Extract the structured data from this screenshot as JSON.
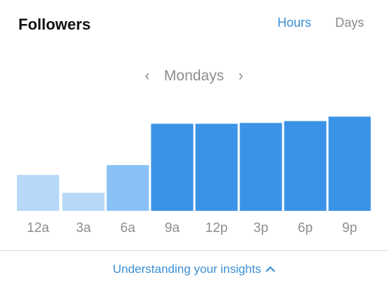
{
  "header": {
    "title": "Followers",
    "tabs": [
      {
        "label": "Hours",
        "active": true
      },
      {
        "label": "Days",
        "active": false
      }
    ]
  },
  "day_nav": {
    "label": "Mondays",
    "prev_icon": "chevron-left-icon",
    "next_icon": "chevron-right-icon"
  },
  "chart_data": {
    "type": "bar",
    "categories": [
      "12a",
      "3a",
      "6a",
      "9a",
      "12p",
      "3p",
      "6p",
      "9p"
    ],
    "values": [
      40,
      20,
      51,
      97,
      97,
      98,
      100,
      105
    ],
    "ylim": [
      0,
      110
    ],
    "grid": false,
    "colors": [
      "#b7d9f9",
      "#b7d9f9",
      "#89c1f6",
      "#3b93e8",
      "#3b93e8",
      "#3b93e8",
      "#3b93e8",
      "#3b93e8"
    ]
  },
  "footer": {
    "link_label": "Understanding your insights",
    "icon": "chevron-up-icon"
  },
  "colors": {
    "accent": "#3a8fd6",
    "muted": "#8e8e8e"
  }
}
